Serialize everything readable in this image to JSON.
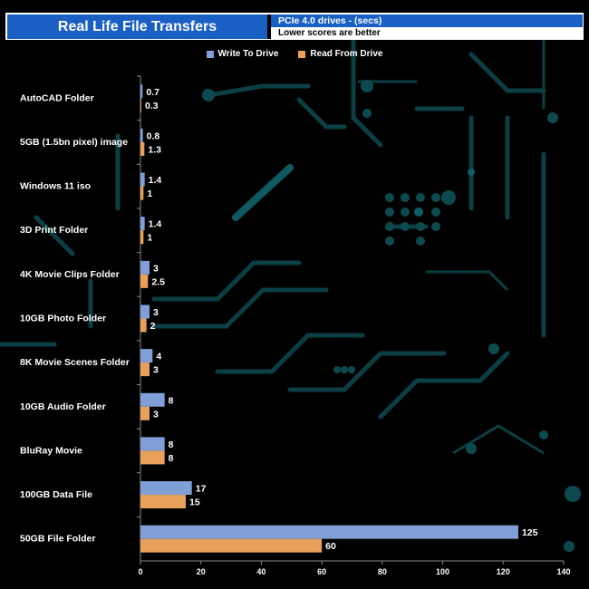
{
  "chart_data": {
    "type": "bar",
    "orientation": "horizontal",
    "title": "Real Life File Transfers",
    "subtitle": "PCIe 4.0 drives - (secs)",
    "note": "Lower scores are better",
    "categories": [
      "AutoCAD Folder",
      "5GB (1.5bn pixel) image",
      "Windows 11 iso",
      "3D Print Folder",
      "4K Movie Clips Folder",
      "10GB Photo Folder",
      "8K Movie Scenes Folder",
      "10GB Audio Folder",
      "BluRay Movie",
      "100GB Data File",
      "50GB File Folder"
    ],
    "series": [
      {
        "name": "Write To  Drive",
        "color": "#7f9fd6",
        "values": [
          0.7,
          0.8,
          1.4,
          1.4,
          3,
          3,
          4,
          8,
          8,
          17,
          125
        ]
      },
      {
        "name": "Read From  Drive",
        "color": "#e9a05b",
        "values": [
          0.3,
          1.3,
          1,
          1,
          2.5,
          2,
          3,
          3,
          8,
          15,
          60
        ]
      }
    ],
    "xlim": [
      0,
      140
    ],
    "xticks": [
      0,
      20,
      40,
      60,
      80,
      100,
      120,
      140
    ],
    "grid": false,
    "legend_position": "top-center"
  }
}
